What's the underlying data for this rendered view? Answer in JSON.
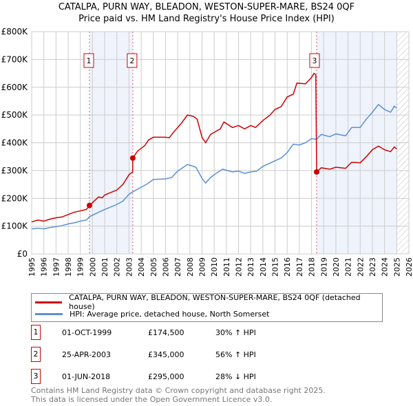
{
  "chart_data": {
    "type": "line",
    "title": "CATALPA, PURN WAY, BLEADON, WESTON-SUPER-MARE, BS24 0QF",
    "subtitle": "Price paid vs. HM Land Registry's House Price Index (HPI)",
    "xlim": [
      1995,
      2026
    ],
    "ylim": [
      0,
      800000
    ],
    "x_ticks": [
      "1995",
      "1996",
      "1997",
      "1998",
      "1999",
      "2000",
      "2001",
      "2002",
      "2003",
      "2004",
      "2005",
      "2006",
      "2007",
      "2008",
      "2009",
      "2010",
      "2011",
      "2012",
      "2013",
      "2014",
      "2015",
      "2016",
      "2017",
      "2018",
      "2019",
      "2020",
      "2021",
      "2022",
      "2023",
      "2024",
      "2025",
      "2026"
    ],
    "y_ticks": [
      {
        "v": 0,
        "label": "£0"
      },
      {
        "v": 100000,
        "label": "£100K"
      },
      {
        "v": 200000,
        "label": "£200K"
      },
      {
        "v": 300000,
        "label": "£300K"
      },
      {
        "v": 400000,
        "label": "£400K"
      },
      {
        "v": 500000,
        "label": "£500K"
      },
      {
        "v": 600000,
        "label": "£600K"
      },
      {
        "v": 700000,
        "label": "£700K"
      },
      {
        "v": 800000,
        "label": "£800K"
      }
    ],
    "grid": true,
    "shaded_ranges": [
      [
        1999.75,
        2003.31
      ],
      [
        2018.42,
        2025.0
      ]
    ],
    "hatched_range": [
      2025.0,
      2026
    ],
    "series": [
      {
        "name": "CATALPA, PURN WAY, BLEADON, WESTON-SUPER-MARE, BS24 0QF (detached house)",
        "color": "#cc0000",
        "x": [
          1995,
          1995.5,
          1996,
          1996.5,
          1997,
          1997.5,
          1998,
          1998.5,
          1999,
          1999.5,
          1999.75,
          2000.5,
          2000.8,
          2001,
          2002,
          2002.5,
          2003,
          2003.3,
          2003.31,
          2003.7,
          2004.3,
          2004.6,
          2005,
          2006,
          2006.3,
          2006.7,
          2007.3,
          2007.8,
          2008.3,
          2008.6,
          2009,
          2009.3,
          2009.7,
          2010.5,
          2010.8,
          2011.5,
          2012,
          2012.5,
          2013,
          2013.4,
          2014,
          2014.6,
          2015,
          2015.5,
          2016,
          2016.5,
          2016.8,
          2017.5,
          2018,
          2018.2,
          2018.35,
          2018.42,
          2018.8,
          2019.5,
          2020,
          2020.8,
          2021.3,
          2022,
          2022.5,
          2023,
          2023.5,
          2024,
          2024.5,
          2024.8,
          2025
        ],
        "y": [
          115000,
          122000,
          118000,
          125000,
          130000,
          133000,
          142000,
          150000,
          155000,
          160000,
          174500,
          205000,
          202000,
          212000,
          230000,
          250000,
          285000,
          295000,
          345000,
          370000,
          390000,
          410000,
          420000,
          420000,
          418000,
          440000,
          470000,
          500000,
          495000,
          485000,
          420000,
          400000,
          430000,
          450000,
          475000,
          455000,
          462000,
          450000,
          462000,
          455000,
          480000,
          500000,
          520000,
          530000,
          565000,
          575000,
          615000,
          612000,
          635000,
          650000,
          645000,
          295000,
          310000,
          305000,
          312000,
          308000,
          330000,
          328000,
          350000,
          375000,
          388000,
          375000,
          368000,
          385000,
          378000
        ]
      },
      {
        "name": "HPI: Average price, detached house, North Somerset",
        "color": "#5b8fd4",
        "x": [
          1995,
          1995.5,
          1996,
          1996.5,
          1997,
          1997.5,
          1998,
          1998.5,
          1999,
          1999.5,
          1999.75,
          2000.5,
          2001,
          2002,
          2002.5,
          2003,
          2003.5,
          2004,
          2004.5,
          2005,
          2006,
          2006.5,
          2007,
          2007.8,
          2008.5,
          2009,
          2009.3,
          2009.7,
          2010,
          2010.7,
          2011.5,
          2012,
          2012.5,
          2013,
          2013.5,
          2014,
          2015,
          2015.5,
          2016,
          2016.5,
          2017,
          2017.5,
          2018,
          2018.4,
          2018.8,
          2019.5,
          2020,
          2020.8,
          2021.3,
          2022,
          2022.5,
          2023,
          2023.5,
          2024,
          2024.5,
          2024.8,
          2025
        ],
        "y": [
          90000,
          93000,
          90000,
          95000,
          98000,
          102000,
          108000,
          112000,
          118000,
          122000,
          134000,
          150000,
          160000,
          178000,
          190000,
          215000,
          228000,
          240000,
          252000,
          268000,
          270000,
          275000,
          298000,
          322000,
          312000,
          272000,
          255000,
          275000,
          285000,
          305000,
          295000,
          298000,
          290000,
          295000,
          298000,
          315000,
          335000,
          345000,
          365000,
          395000,
          392000,
          400000,
          415000,
          412000,
          430000,
          422000,
          432000,
          425000,
          455000,
          455000,
          485000,
          510000,
          538000,
          520000,
          510000,
          532000,
          525000
        ]
      }
    ],
    "sales": [
      {
        "marker": "1",
        "x": 1999.75,
        "y": 174500,
        "date": "01-OCT-1999",
        "price": "£174,500",
        "hpi_diff": "30% ↑ HPI"
      },
      {
        "marker": "2",
        "x": 2003.31,
        "y": 345000,
        "date": "25-APR-2003",
        "price": "£345,000",
        "hpi_diff": "56% ↑ HPI"
      },
      {
        "marker": "3",
        "x": 2018.42,
        "y": 295000,
        "date": "01-JUN-2018",
        "price": "£295,000",
        "hpi_diff": "28% ↓ HPI"
      }
    ]
  },
  "footer": {
    "line1": "Contains HM Land Registry data © Crown copyright and database right 2025.",
    "line2": "This data is licensed under the Open Government Licence v3.0."
  }
}
